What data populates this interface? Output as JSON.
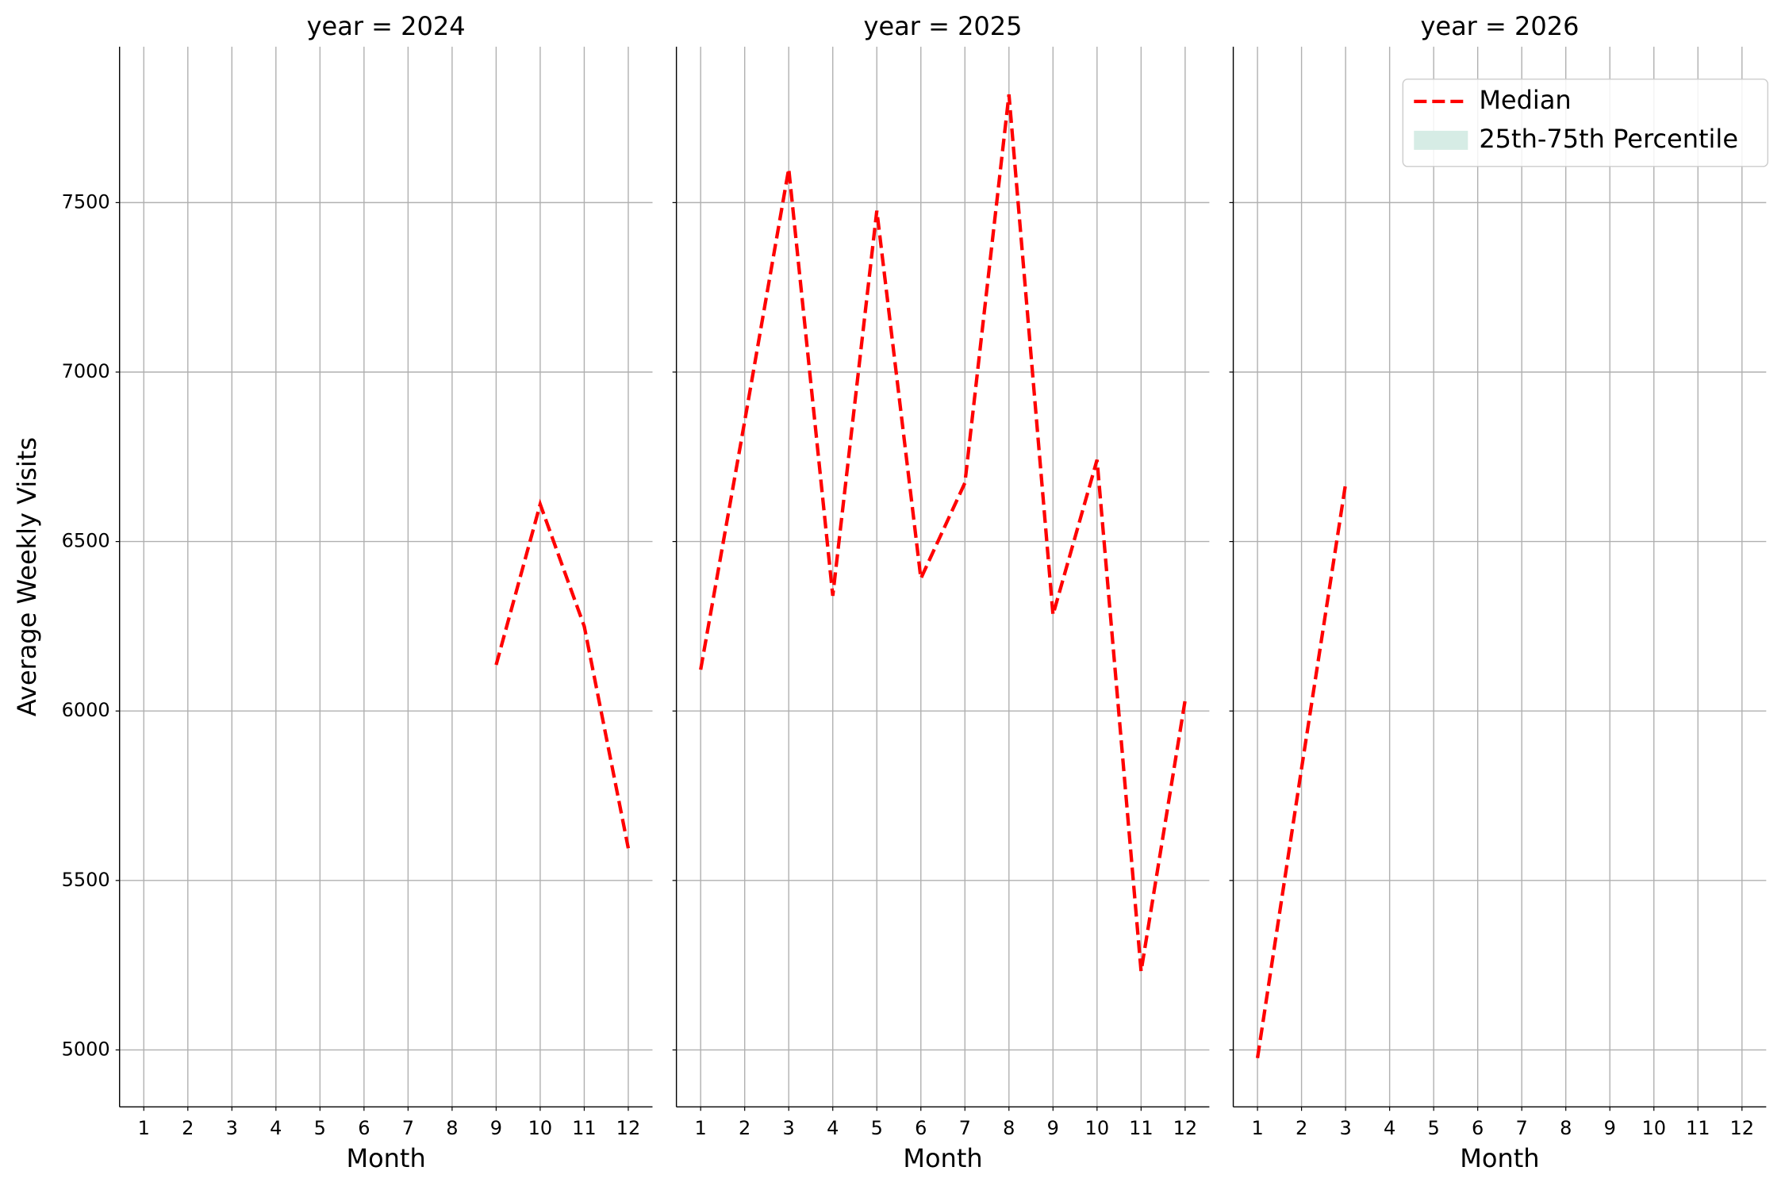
{
  "chart_data": [
    {
      "type": "line",
      "title": "year = 2024",
      "xlabel": "Month",
      "ylabel": "Average Weekly Visits",
      "x": [
        1,
        2,
        3,
        4,
        5,
        6,
        7,
        8,
        9,
        10,
        11,
        12
      ],
      "series": [
        {
          "name": "Median",
          "color": "red",
          "values": [
            null,
            null,
            null,
            null,
            null,
            null,
            null,
            null,
            6136,
            6610,
            6250,
            5595
          ]
        }
      ],
      "xlim": [
        0.45,
        12.55
      ],
      "xticks": [
        1,
        2,
        3,
        4,
        5,
        6,
        7,
        8,
        9,
        10,
        11,
        12
      ],
      "ylim": [
        4832,
        7960
      ],
      "yticks": [
        5000,
        5500,
        6000,
        6500,
        7000,
        7500
      ],
      "grid": true
    },
    {
      "type": "line",
      "title": "year = 2025",
      "xlabel": "Month",
      "x": [
        1,
        2,
        3,
        4,
        5,
        6,
        7,
        8,
        9,
        10,
        11,
        12
      ],
      "series": [
        {
          "name": "Median",
          "color": "red",
          "values": [
            6122,
            6855,
            7600,
            6340,
            7476,
            6391,
            6673,
            7819,
            6284,
            6741,
            5232,
            6032
          ]
        }
      ],
      "xlim": [
        0.45,
        12.55
      ],
      "xticks": [
        1,
        2,
        3,
        4,
        5,
        6,
        7,
        8,
        9,
        10,
        11,
        12
      ],
      "ylim": [
        4832,
        7960
      ],
      "yticks": [
        5000,
        5500,
        6000,
        6500,
        7000,
        7500
      ],
      "grid": true
    },
    {
      "type": "line",
      "title": "year = 2026",
      "xlabel": "Month",
      "x": [
        1,
        2,
        3,
        4,
        5,
        6,
        7,
        8,
        9,
        10,
        11,
        12
      ],
      "series": [
        {
          "name": "Median",
          "color": "red",
          "values": [
            4976,
            5830,
            6670,
            null,
            null,
            null,
            null,
            null,
            null,
            null,
            null,
            null
          ]
        },
        {
          "name": "25th-75th Percentile",
          "color": "#d6ece5"
        }
      ],
      "xlim": [
        0.45,
        12.55
      ],
      "xticks": [
        1,
        2,
        3,
        4,
        5,
        6,
        7,
        8,
        9,
        10,
        11,
        12
      ],
      "ylim": [
        4832,
        7960
      ],
      "yticks": [
        5000,
        5500,
        6000,
        6500,
        7000,
        7500
      ],
      "grid": true,
      "legend": "upper right"
    }
  ]
}
